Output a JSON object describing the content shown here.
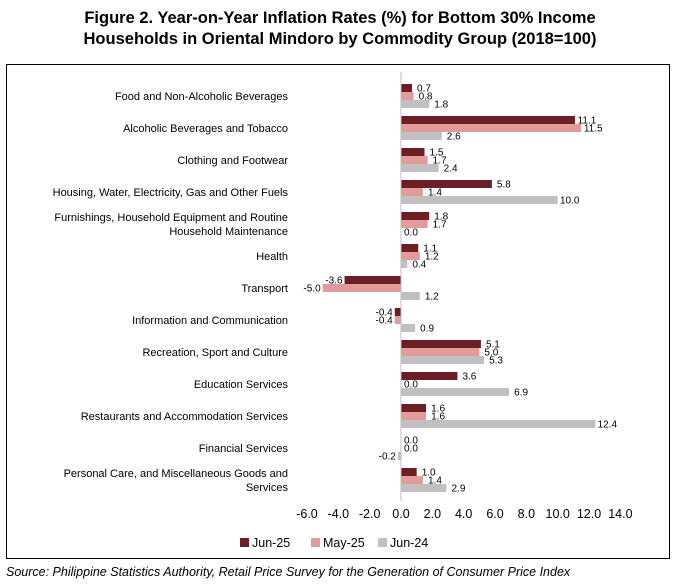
{
  "figure": {
    "title_line1": "Figure 2. Year-on-Year Inflation Rates (%) for Bottom 30% Income",
    "title_line2": "Households in Oriental Mindoro by Commodity Group (2018=100)",
    "source": "Source: Philippine Statistics Authority, Retail Price Survey for the Generation of Consumer Price Index"
  },
  "chart_data": {
    "type": "bar",
    "orientation": "horizontal",
    "title": "Figure 2. Year-on-Year Inflation Rates (%) for Bottom 30% Income Households in Oriental Mindoro by Commodity Group (2018=100)",
    "categories": [
      [
        "Food and Non-Alcoholic Beverages"
      ],
      [
        "Alcoholic Beverages and Tobacco"
      ],
      [
        "Clothing and Footwear"
      ],
      [
        "Housing, Water, Electricity, Gas and Other Fuels"
      ],
      [
        "Furnishings, Household Equipment and Routine",
        "Household Maintenance"
      ],
      [
        "Health"
      ],
      [
        "Transport"
      ],
      [
        "Information and Communication"
      ],
      [
        "Recreation, Sport and Culture"
      ],
      [
        "Education Services"
      ],
      [
        "Restaurants and Accommodation Services"
      ],
      [
        "Financial Services"
      ],
      [
        "Personal Care, and Miscellaneous Goods and",
        "Services"
      ]
    ],
    "series": [
      {
        "name": "Jun-25",
        "color": "#6B1F24",
        "values": [
          0.7,
          11.1,
          1.5,
          5.8,
          1.8,
          1.1,
          -3.6,
          -0.4,
          5.1,
          3.6,
          1.6,
          0.0,
          1.0
        ]
      },
      {
        "name": "May-25",
        "color": "#E29A9A",
        "values": [
          0.8,
          11.5,
          1.7,
          1.4,
          1.7,
          1.2,
          -5.0,
          -0.4,
          5.0,
          0.0,
          1.6,
          0.0,
          1.4
        ]
      },
      {
        "name": "Jun-24",
        "color": "#C0C0C0",
        "values": [
          1.8,
          2.6,
          2.4,
          10.0,
          0.0,
          0.4,
          1.2,
          0.9,
          5.3,
          6.9,
          12.4,
          -0.2,
          2.9
        ]
      }
    ],
    "xlim": [
      -6.0,
      14.0
    ],
    "xticks": [
      "-6.0",
      "-4.0",
      "-2.0",
      "0.0",
      "2.0",
      "4.0",
      "6.0",
      "8.0",
      "10.0",
      "12.0",
      "14.0"
    ],
    "legend_position": "bottom",
    "grid": false
  }
}
